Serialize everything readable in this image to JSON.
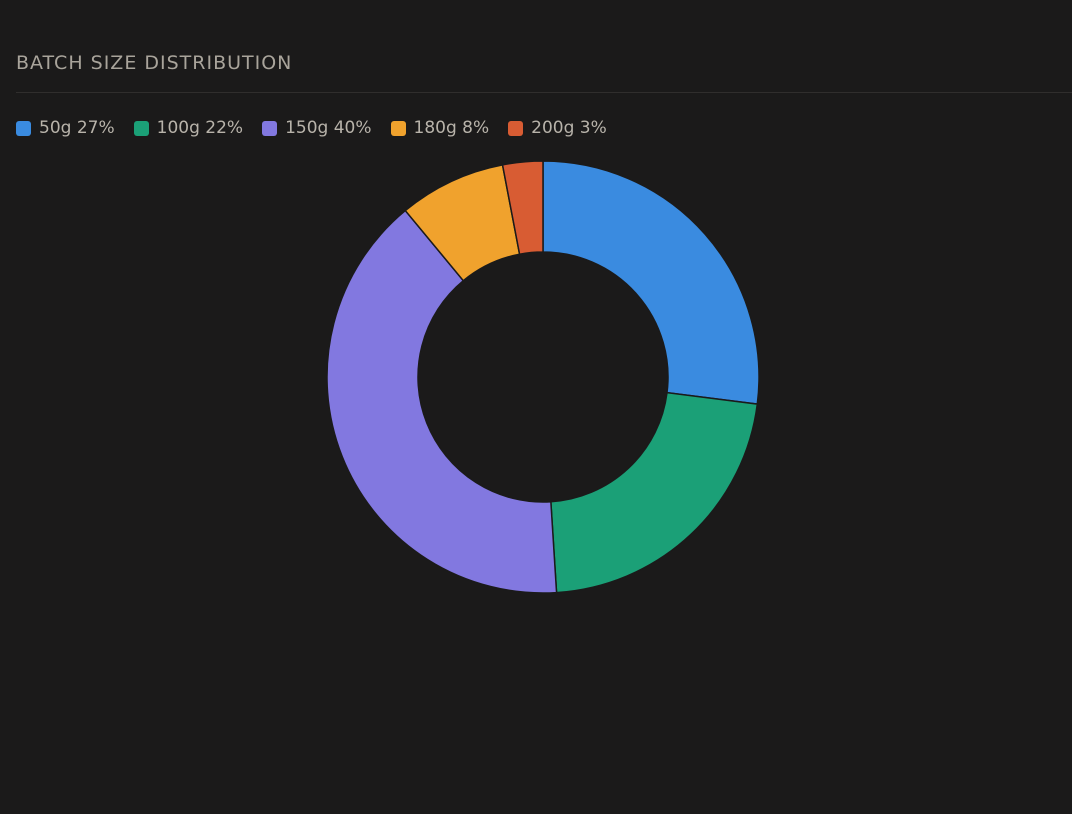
{
  "panel": {
    "title": "BATCH SIZE DISTRIBUTION"
  },
  "legend": [
    {
      "label": "50g 27%"
    },
    {
      "label": "100g 22%"
    },
    {
      "label": "150g 40%"
    },
    {
      "label": "180g 8%"
    },
    {
      "label": "200g 3%"
    }
  ],
  "chart_data": {
    "type": "pie",
    "variant": "donut",
    "title": "BATCH SIZE DISTRIBUTION",
    "categories": [
      "50g",
      "100g",
      "150g",
      "180g",
      "200g"
    ],
    "values": [
      27,
      22,
      40,
      8,
      3
    ],
    "unit": "%",
    "colors": [
      "#3a8be0",
      "#1ba077",
      "#8278e0",
      "#f0a22d",
      "#d85c33"
    ],
    "legend_position": "top-left",
    "start_angle": "12 o'clock",
    "direction": "clockwise"
  },
  "theme": {
    "background": "#1b1a1a",
    "title_color": "#a9a49b",
    "legend_text_color": "#b8b3aa"
  }
}
